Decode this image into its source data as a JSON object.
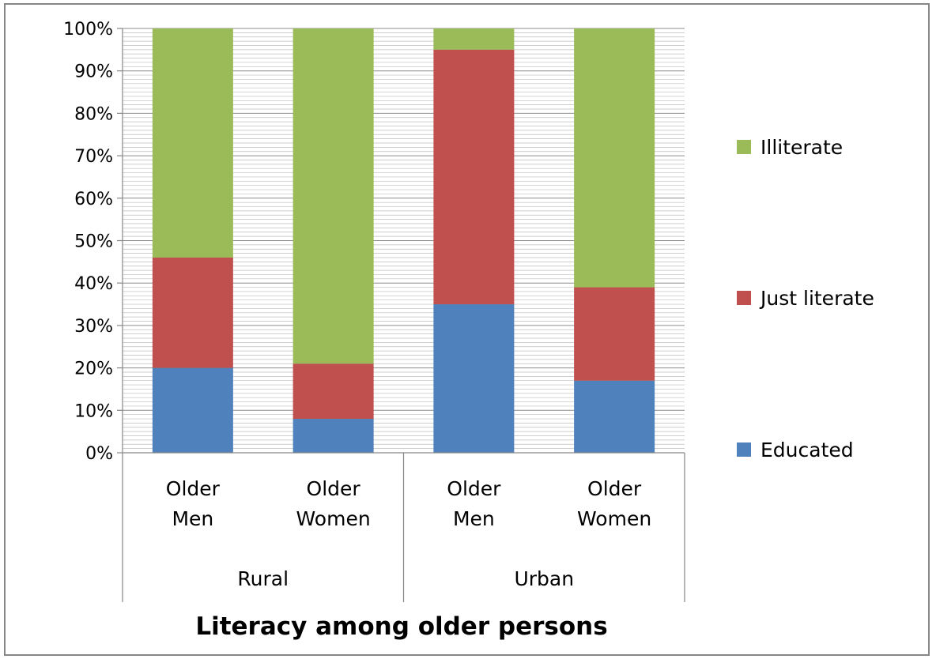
{
  "chart_data": {
    "type": "bar",
    "stacked": true,
    "percent_stacked": true,
    "title": "Literacy among older persons",
    "groups": [
      {
        "label": "Rural",
        "categories": [
          "Older Men",
          "Older Women"
        ]
      },
      {
        "label": "Urban",
        "categories": [
          "Older Men",
          "Older Women"
        ]
      }
    ],
    "categories": [
      "Older Men",
      "Older Women",
      "Older Men",
      "Older Women"
    ],
    "series": [
      {
        "name": "Educated",
        "color": "#4F81BD",
        "values": [
          20,
          8,
          35,
          17
        ]
      },
      {
        "name": "Just literate",
        "color": "#C0504D",
        "values": [
          26,
          13,
          60,
          22
        ]
      },
      {
        "name": "Illiterate",
        "color": "#9BBB59",
        "values": [
          54,
          79,
          5,
          61
        ]
      }
    ],
    "ylim": [
      0,
      100
    ],
    "y_ticks": [
      "0%",
      "10%",
      "20%",
      "30%",
      "40%",
      "50%",
      "60%",
      "70%",
      "80%",
      "90%",
      "100%"
    ],
    "grid": true,
    "legend_position": "right"
  }
}
